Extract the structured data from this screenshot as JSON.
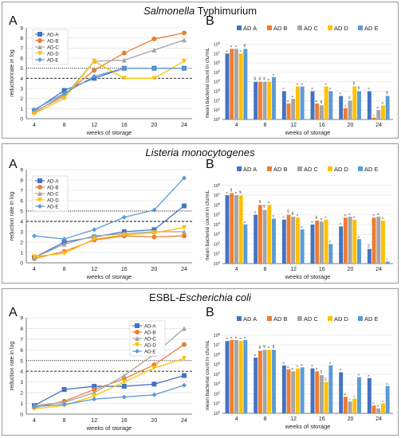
{
  "colors": {
    "AD-A": "#4472c4",
    "AD-B": "#ed7d31",
    "AD-C": "#a5a5a5",
    "AD-D": "#ffc000",
    "AD-E": "#5b9bd5"
  },
  "chart_data": [
    {
      "type": "line",
      "panel_title_parts": [
        {
          "text": "Salmonella",
          "italic": true
        },
        {
          "text": " Typhimurium",
          "italic": false
        }
      ],
      "letter": "A",
      "x": [
        4,
        8,
        12,
        16,
        20,
        24
      ],
      "xlabel": "weeks of storage",
      "ylabel": "reductionrate in log",
      "ylim": [
        0,
        9
      ],
      "yticks": [
        0,
        1,
        2,
        3,
        4,
        5,
        6,
        7,
        8,
        9
      ],
      "hlines": [
        {
          "y": 4,
          "style": "dashed"
        },
        {
          "y": 5,
          "style": "dotted"
        }
      ],
      "legend": "top-left",
      "series": [
        {
          "name": "AD-A",
          "marker": "square",
          "values": [
            0.8,
            2.8,
            4.0,
            5.0,
            5.0,
            5.0
          ]
        },
        {
          "name": "AD-B",
          "marker": "circle",
          "values": [
            0.6,
            2.4,
            4.8,
            6.5,
            7.9,
            8.5
          ]
        },
        {
          "name": "AD-C",
          "marker": "triangle",
          "values": [
            0.7,
            2.2,
            5.7,
            5.8,
            6.8,
            7.8
          ]
        },
        {
          "name": "AD-D",
          "marker": "triangle-down",
          "values": [
            0.5,
            2.0,
            5.7,
            4.0,
            4.0,
            5.7
          ]
        },
        {
          "name": "AD-E",
          "marker": "diamond",
          "values": [
            0.9,
            2.5,
            4.2,
            5.0,
            5.0,
            5.0
          ]
        }
      ]
    },
    {
      "type": "bar",
      "letter": "B",
      "categories": [
        "4",
        "8",
        "12",
        "16",
        "20",
        "24"
      ],
      "xlabel": "weeks of storage",
      "ylabel": "mean bacterial count in cfu/mL",
      "ylog_exponents": [
        0,
        8
      ],
      "legend": "top",
      "series": [
        {
          "name": "AD A",
          "values": [
            7.0,
            4.0,
            3.0,
            3.0,
            2.5,
            3.0
          ],
          "labels": [
            "b",
            "ab",
            "a",
            "a",
            "a",
            "a"
          ]
        },
        {
          "name": "AD B",
          "values": [
            7.5,
            4.0,
            1.7,
            1.7,
            1.2,
            0.2
          ],
          "labels": [
            "a",
            "ab",
            "b",
            "b",
            "c",
            "c"
          ]
        },
        {
          "name": "AD C",
          "values": [
            7.5,
            4.0,
            2.2,
            1.5,
            2.0,
            1.0
          ],
          "labels": [
            "a",
            "ab",
            "b",
            "ab",
            "bc",
            "b"
          ]
        },
        {
          "name": "AD D",
          "values": [
            7.0,
            4.0,
            3.5,
            3.5,
            3.5,
            1.5
          ],
          "labels": [
            "a",
            "b",
            "a",
            "a",
            "ab",
            "b"
          ]
        },
        {
          "name": "AD E",
          "values": [
            7.5,
            4.5,
            3.5,
            3.0,
            3.0,
            2.5
          ],
          "labels": [
            "ab",
            "a",
            "a",
            "a",
            "ab",
            "ab"
          ]
        }
      ]
    },
    {
      "type": "line",
      "panel_title_parts": [
        {
          "text": "Listeria monocytogenes",
          "italic": true
        }
      ],
      "letter": "A",
      "x": [
        4,
        8,
        12,
        16,
        20,
        24
      ],
      "xlabel": "weeks of storage",
      "ylabel": "reduction rate in log",
      "ylim": [
        0,
        9
      ],
      "yticks": [
        0,
        1,
        2,
        3,
        4,
        5,
        6,
        7,
        8,
        9
      ],
      "hlines": [
        {
          "y": 4,
          "style": "dashed"
        },
        {
          "y": 5,
          "style": "dotted"
        }
      ],
      "legend": "top-left",
      "series": [
        {
          "name": "AD-A",
          "marker": "square",
          "values": [
            0.5,
            2.0,
            2.5,
            3.0,
            3.2,
            5.5
          ]
        },
        {
          "name": "AD-B",
          "marker": "circle",
          "values": [
            0.4,
            1.1,
            2.2,
            2.6,
            2.5,
            2.6
          ]
        },
        {
          "name": "AD-C",
          "marker": "triangle",
          "values": [
            0.5,
            1.8,
            2.6,
            2.8,
            3.0,
            3.0
          ]
        },
        {
          "name": "AD-D",
          "marker": "triangle-down",
          "values": [
            0.6,
            0.9,
            2.3,
            2.7,
            2.9,
            3.4
          ]
        },
        {
          "name": "AD-E",
          "marker": "diamond",
          "values": [
            2.6,
            2.3,
            3.2,
            4.4,
            5.1,
            8.2
          ]
        }
      ]
    },
    {
      "type": "bar",
      "letter": "B",
      "categories": [
        "4",
        "8",
        "12",
        "16",
        "20",
        "24"
      ],
      "xlabel": "weeks of storage",
      "ylabel": "mean bacterial count in cfu/mL",
      "ylog_exponents": [
        0,
        8
      ],
      "legend": "top",
      "series": [
        {
          "name": "AD A",
          "values": [
            7.0,
            5.0,
            4.5,
            4.0,
            3.8,
            1.5
          ],
          "labels": [
            "a",
            "a",
            "a",
            "a",
            "a",
            "bc"
          ]
        },
        {
          "name": "AD B",
          "values": [
            7.2,
            6.0,
            5.0,
            4.4,
            4.7,
            4.7
          ],
          "labels": [
            "ab",
            "ab",
            "ab",
            "ab",
            "a",
            "a"
          ]
        },
        {
          "name": "AD C",
          "values": [
            7.0,
            5.5,
            4.8,
            4.3,
            4.8,
            4.8
          ],
          "labels": [
            "a",
            "ab",
            "ab",
            "a",
            "a",
            "a"
          ]
        },
        {
          "name": "AD D",
          "values": [
            7.0,
            6.0,
            4.7,
            4.5,
            4.5,
            4.4
          ],
          "labels": [
            "ab",
            "a",
            "a",
            "a",
            "a",
            "a"
          ]
        },
        {
          "name": "AD E",
          "values": [
            4.0,
            4.6,
            3.5,
            2.0,
            2.5,
            0.2
          ],
          "labels": [
            "b",
            "a",
            "b",
            "b",
            "b",
            "c"
          ]
        }
      ]
    },
    {
      "type": "line",
      "panel_title_parts": [
        {
          "text": "ESBL-",
          "italic": false
        },
        {
          "text": "Escherichia coli",
          "italic": true
        }
      ],
      "letter": "A",
      "x": [
        4,
        8,
        12,
        16,
        20,
        24
      ],
      "xlabel": "weeks of storage",
      "ylabel": "reduction rate in log",
      "ylim": [
        0,
        9
      ],
      "yticks": [
        0,
        1,
        2,
        3,
        4,
        5,
        6,
        7,
        8,
        9
      ],
      "hlines": [
        {
          "y": 4,
          "style": "dashed"
        },
        {
          "y": 5,
          "style": "dotted"
        }
      ],
      "legend": "top-right",
      "series": [
        {
          "name": "AD-A",
          "marker": "square",
          "values": [
            0.8,
            2.3,
            2.6,
            2.6,
            2.8,
            3.6
          ]
        },
        {
          "name": "AD-B",
          "marker": "circle",
          "values": [
            0.6,
            1.2,
            2.3,
            3.3,
            4.6,
            6.5
          ]
        },
        {
          "name": "AD-C",
          "marker": "triangle",
          "values": [
            0.8,
            1.1,
            2.0,
            3.6,
            5.6,
            8.0
          ]
        },
        {
          "name": "AD-D",
          "marker": "triangle-down",
          "values": [
            0.5,
            0.8,
            1.7,
            3.0,
            4.3,
            5.2
          ]
        },
        {
          "name": "AD-E",
          "marker": "diamond",
          "values": [
            0.7,
            0.9,
            1.4,
            1.6,
            1.8,
            2.7
          ]
        }
      ]
    },
    {
      "type": "bar",
      "letter": "B",
      "categories": [
        "4",
        "8",
        "12",
        "16",
        "20",
        "24"
      ],
      "xlabel": "weeks of storage",
      "ylabel": "mean bacterial count in cfu/mL",
      "ylog_exponents": [
        0,
        8
      ],
      "legend": "top",
      "series": [
        {
          "name": "AD A",
          "values": [
            7.4,
            5.7,
            4.9,
            4.6,
            4.2,
            3.6
          ],
          "labels": [
            "a",
            "b",
            "a",
            "a",
            "a",
            "a"
          ]
        },
        {
          "name": "AD B",
          "values": [
            7.5,
            6.4,
            4.5,
            4.3,
            1.7,
            0.8
          ],
          "labels": [
            "a",
            "ab",
            "b",
            "a",
            "b",
            "c"
          ]
        },
        {
          "name": "AD C",
          "values": [
            7.5,
            6.5,
            4.3,
            3.9,
            1.2,
            0.5
          ],
          "labels": [
            "a",
            "ab",
            "b",
            "cd",
            "c",
            "d"
          ]
        },
        {
          "name": "AD D",
          "values": [
            7.4,
            6.5,
            4.6,
            3.2,
            1.5,
            1.0
          ],
          "labels": [
            "a",
            "a",
            "b",
            "bc",
            "c",
            "c"
          ]
        },
        {
          "name": "AD E",
          "values": [
            7.5,
            6.5,
            4.7,
            4.9,
            3.7,
            2.8
          ],
          "labels": [
            "a",
            "ab",
            "b",
            "a",
            "a",
            "b"
          ]
        }
      ]
    }
  ]
}
